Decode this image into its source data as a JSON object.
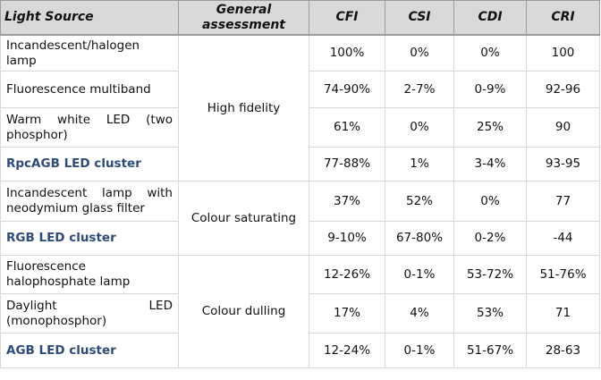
{
  "table": {
    "headers": {
      "light_source": "Light Source",
      "general_assessment": "General assessment",
      "cfi": "CFI",
      "csi": "CSI",
      "cdi": "CDI",
      "cri": "CRI"
    },
    "groups": [
      {
        "assessment": "High fidelity",
        "rows": [
          {
            "source": "Incandescent/halogen lamp",
            "cfi": "100%",
            "csi": "0%",
            "cdi": "0%",
            "cri": "100",
            "bold": false
          },
          {
            "source": "Fluorescence multiband",
            "cfi": "74-90%",
            "csi": "2-7%",
            "cdi": "0-9%",
            "cri": "92-96",
            "bold": false
          },
          {
            "source": "Warm white LED (two phosphor)",
            "cfi": "61%",
            "csi": "0%",
            "cdi": "25%",
            "cri": "90",
            "bold": false
          },
          {
            "source": "RpcAGB LED cluster",
            "cfi": "77-88%",
            "csi": "1%",
            "cdi": "3-4%",
            "cri": "93-95",
            "bold": true
          }
        ]
      },
      {
        "assessment": "Colour saturating",
        "rows": [
          {
            "source": "Incandescent lamp with neodymium glass filter",
            "cfi": "37%",
            "csi": "52%",
            "cdi": "0%",
            "cri": "77",
            "bold": false
          },
          {
            "source": "RGB LED cluster",
            "cfi": "9-10%",
            "csi": "67-80%",
            "cdi": "0-2%",
            "cri": "-44",
            "bold": true
          }
        ]
      },
      {
        "assessment": "Colour dulling",
        "rows": [
          {
            "source": "Fluorescence halophosphate lamp",
            "cfi": "12-26%",
            "csi": "0-1%",
            "cdi": "53-72%",
            "cri": "51-76%",
            "bold": false
          },
          {
            "source": "Daylight LED (monophosphor)",
            "cfi": "17%",
            "csi": "4%",
            "cdi": "53%",
            "cri": "71",
            "bold": false
          },
          {
            "source": "AGB LED cluster",
            "cfi": "12-24%",
            "csi": "0-1%",
            "cdi": "51-67%",
            "cri": "28-63",
            "bold": true
          }
        ]
      }
    ]
  }
}
